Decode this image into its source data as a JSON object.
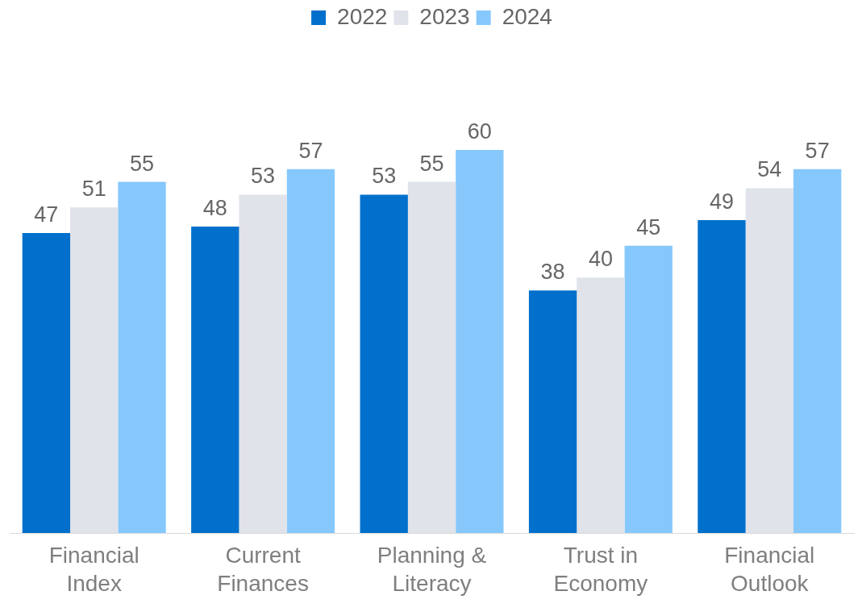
{
  "chart_data": {
    "type": "bar",
    "categories": [
      "Financial Index",
      "Current Finances",
      "Planning & Literacy",
      "Trust in Economy",
      "Financial Outlook"
    ],
    "series": [
      {
        "name": "2022",
        "color": "#0070cc",
        "values": [
          47,
          48,
          53,
          38,
          49
        ]
      },
      {
        "name": "2023",
        "color": "#e0e3ea",
        "values": [
          51,
          53,
          55,
          40,
          54
        ]
      },
      {
        "name": "2024",
        "color": "#86c8fc",
        "values": [
          55,
          57,
          60,
          45,
          57
        ]
      }
    ],
    "tick_labels": "x",
    "grid": false,
    "legend": "top",
    "data_labels": true
  }
}
